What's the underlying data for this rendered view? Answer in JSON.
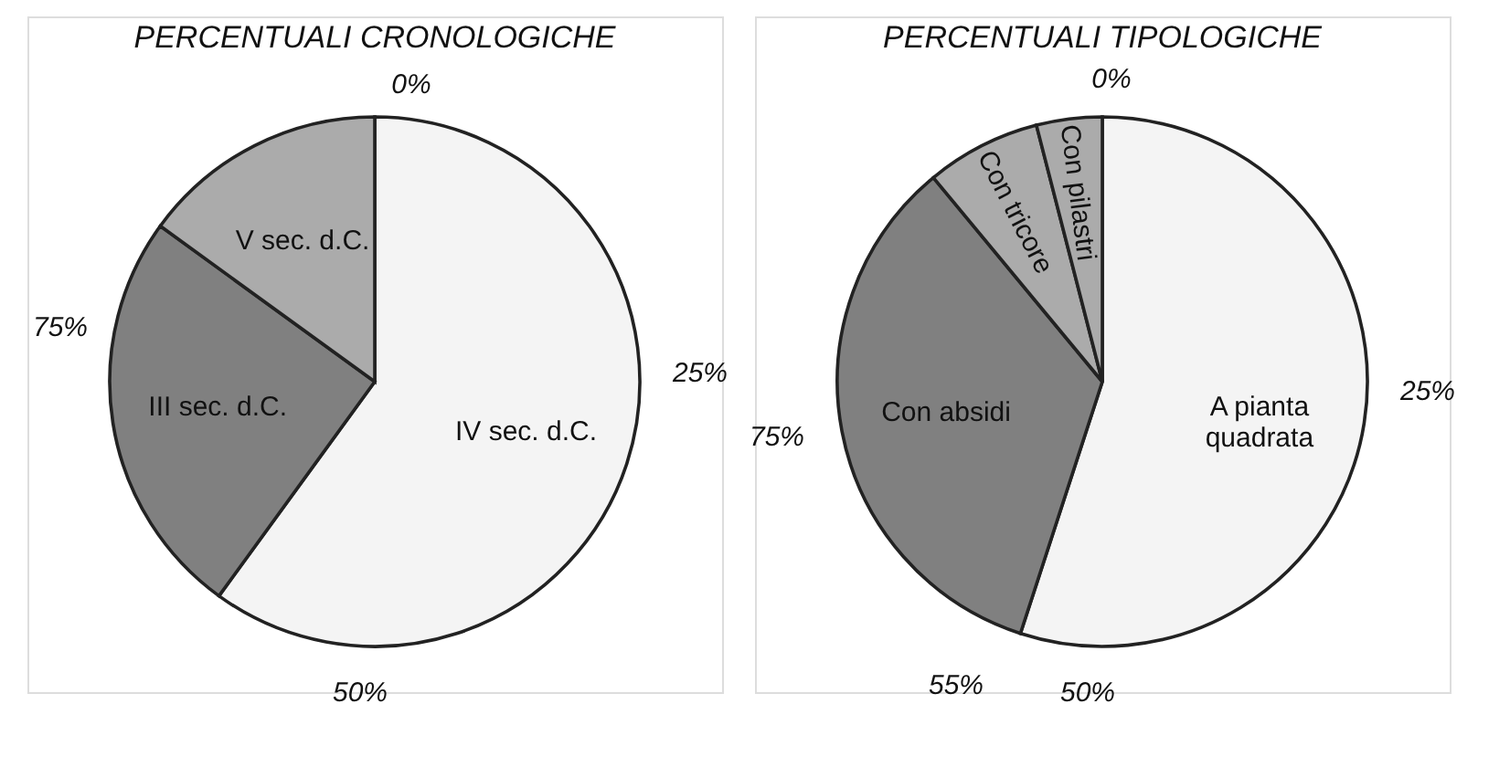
{
  "chart_data": [
    {
      "type": "pie",
      "title": "PERCENTUALI CRONOLOGICHE",
      "categories": [
        "IV sec. d.C.",
        "III sec. d.C.",
        "V sec. d.C."
      ],
      "values": [
        60,
        25,
        15
      ],
      "colors": [
        "#f4f4f4",
        "#808080",
        "#ababab"
      ],
      "annotations": [
        "0%",
        "25%",
        "50%",
        "75%"
      ]
    },
    {
      "type": "pie",
      "title": "PERCENTUALI TIPOLOGICHE",
      "categories": [
        "A pianta\nquadrata",
        "Con absidi",
        "Con tricore",
        "Con pilastri"
      ],
      "values": [
        55,
        34,
        7,
        4
      ],
      "colors": [
        "#f4f4f4",
        "#808080",
        "#ababab",
        "#ababab"
      ],
      "annotations": [
        "0%",
        "25%",
        "50%",
        "75%",
        "55%"
      ]
    }
  ]
}
